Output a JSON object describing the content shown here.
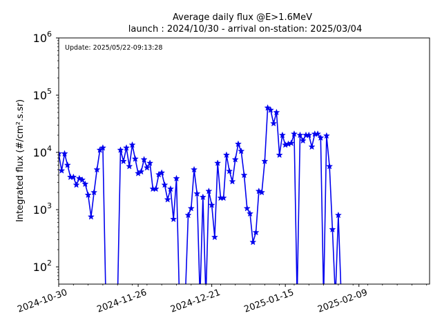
{
  "chart_data": {
    "type": "line",
    "title_line1": "Average daily flux @E>1.6MeV",
    "title_line2": "launch : 2024/10/30 - arrival on-station: 2025/03/04",
    "annotation": "Update: 2025/05/22-09:13:28",
    "ylabel": "Integrated flux (#/cm².s.sr)",
    "xlabel": "",
    "yscale": "log",
    "ylim": [
      50,
      1000000
    ],
    "xlim": [
      "2024-10-30",
      "2025-03-05"
    ],
    "xticks": [
      "2024-10-30",
      "2024-11-26",
      "2024-12-21",
      "2025-01-15",
      "2025-02-09"
    ],
    "yticks": [
      {
        "value": 100,
        "label": "10",
        "exp": "2"
      },
      {
        "value": 1000,
        "label": "10",
        "exp": "3"
      },
      {
        "value": 10000,
        "label": "10",
        "exp": "4"
      },
      {
        "value": 100000,
        "label": "10",
        "exp": "5"
      },
      {
        "value": 1000000,
        "label": "10",
        "exp": "6"
      }
    ],
    "grid": false,
    "color": "#0000ee",
    "series": [
      {
        "marker": "star",
        "points": [
          {
            "x": "2024-10-30",
            "y": 9500
          },
          {
            "x": "2024-10-31",
            "y": 4800
          },
          {
            "x": "2024-11-01",
            "y": 9500
          },
          {
            "x": "2024-11-02",
            "y": 6000
          },
          {
            "x": "2024-11-03",
            "y": 3700
          },
          {
            "x": "2024-11-04",
            "y": 3700
          },
          {
            "x": "2024-11-05",
            "y": 2700
          },
          {
            "x": "2024-11-06",
            "y": 3500
          },
          {
            "x": "2024-11-07",
            "y": 3300
          },
          {
            "x": "2024-11-08",
            "y": 2800
          },
          {
            "x": "2024-11-09",
            "y": 1800
          },
          {
            "x": "2024-11-10",
            "y": 750
          },
          {
            "x": "2024-11-11",
            "y": 2000
          },
          {
            "x": "2024-11-12",
            "y": 5000
          },
          {
            "x": "2024-11-13",
            "y": 11000
          },
          {
            "x": "2024-11-14",
            "y": 12000
          },
          {
            "x": "2024-11-15",
            "y": null
          },
          {
            "x": "2024-11-19",
            "y": null
          },
          {
            "x": "2024-11-20",
            "y": 11000
          },
          {
            "x": "2024-11-21",
            "y": 7000
          },
          {
            "x": "2024-11-22",
            "y": 12000
          },
          {
            "x": "2024-11-23",
            "y": 5700
          },
          {
            "x": "2024-11-24",
            "y": 13500
          },
          {
            "x": "2024-11-25",
            "y": 7700
          },
          {
            "x": "2024-11-26",
            "y": 4300
          },
          {
            "x": "2024-11-27",
            "y": 4600
          },
          {
            "x": "2024-11-28",
            "y": 7500
          },
          {
            "x": "2024-11-29",
            "y": 5400
          },
          {
            "x": "2024-11-30",
            "y": 6500
          },
          {
            "x": "2024-12-01",
            "y": 2300
          },
          {
            "x": "2024-12-02",
            "y": 2300
          },
          {
            "x": "2024-12-03",
            "y": 4100
          },
          {
            "x": "2024-12-04",
            "y": 4400
          },
          {
            "x": "2024-12-05",
            "y": 2700
          },
          {
            "x": "2024-12-06",
            "y": 1500
          },
          {
            "x": "2024-12-07",
            "y": 2300
          },
          {
            "x": "2024-12-08",
            "y": 680
          },
          {
            "x": "2024-12-09",
            "y": 3500
          },
          {
            "x": "2024-12-10",
            "y": null
          },
          {
            "x": "2024-12-12",
            "y": null
          },
          {
            "x": "2024-12-13",
            "y": 800
          },
          {
            "x": "2024-12-14",
            "y": 1050
          },
          {
            "x": "2024-12-15",
            "y": 5000
          },
          {
            "x": "2024-12-16",
            "y": 1900
          },
          {
            "x": "2024-12-17",
            "y": null
          },
          {
            "x": "2024-12-18",
            "y": 1650
          },
          {
            "x": "2024-12-19",
            "y": null
          },
          {
            "x": "2024-12-20",
            "y": 2100
          },
          {
            "x": "2024-12-21",
            "y": 1200
          },
          {
            "x": "2024-12-22",
            "y": 330
          },
          {
            "x": "2024-12-23",
            "y": 6500
          },
          {
            "x": "2024-12-24",
            "y": 1600
          },
          {
            "x": "2024-12-25",
            "y": 1600
          },
          {
            "x": "2024-12-26",
            "y": 9000
          },
          {
            "x": "2024-12-27",
            "y": 4700
          },
          {
            "x": "2024-12-28",
            "y": 3100
          },
          {
            "x": "2024-12-29",
            "y": 7500
          },
          {
            "x": "2024-12-30",
            "y": 14000
          },
          {
            "x": "2024-12-31",
            "y": 10500
          },
          {
            "x": "2025-01-01",
            "y": 4000
          },
          {
            "x": "2025-01-02",
            "y": 1050
          },
          {
            "x": "2025-01-03",
            "y": 850
          },
          {
            "x": "2025-01-04",
            "y": 270
          },
          {
            "x": "2025-01-05",
            "y": 400
          },
          {
            "x": "2025-01-06",
            "y": 2100
          },
          {
            "x": "2025-01-07",
            "y": 2000
          },
          {
            "x": "2025-01-08",
            "y": 7000
          },
          {
            "x": "2025-01-09",
            "y": 60000
          },
          {
            "x": "2025-01-10",
            "y": 55000
          },
          {
            "x": "2025-01-11",
            "y": 32000
          },
          {
            "x": "2025-01-12",
            "y": 50000
          },
          {
            "x": "2025-01-13",
            "y": 9000
          },
          {
            "x": "2025-01-14",
            "y": 20000
          },
          {
            "x": "2025-01-15",
            "y": 13500
          },
          {
            "x": "2025-01-16",
            "y": 14000
          },
          {
            "x": "2025-01-17",
            "y": 14500
          },
          {
            "x": "2025-01-18",
            "y": 21000
          },
          {
            "x": "2025-01-19",
            "y": null
          },
          {
            "x": "2025-01-20",
            "y": 20000
          },
          {
            "x": "2025-01-21",
            "y": 16000
          },
          {
            "x": "2025-01-22",
            "y": 20000
          },
          {
            "x": "2025-01-23",
            "y": 20000
          },
          {
            "x": "2025-01-24",
            "y": 12500
          },
          {
            "x": "2025-01-25",
            "y": 21000
          },
          {
            "x": "2025-01-26",
            "y": 21000
          },
          {
            "x": "2025-01-27",
            "y": 18000
          },
          {
            "x": "2025-01-28",
            "y": null
          },
          {
            "x": "2025-01-29",
            "y": 19500
          },
          {
            "x": "2025-01-30",
            "y": 5700
          },
          {
            "x": "2025-01-31",
            "y": 450
          },
          {
            "x": "2025-02-01",
            "y": null
          },
          {
            "x": "2025-02-02",
            "y": 800
          },
          {
            "x": "2025-02-03",
            "y": null
          }
        ]
      }
    ]
  }
}
